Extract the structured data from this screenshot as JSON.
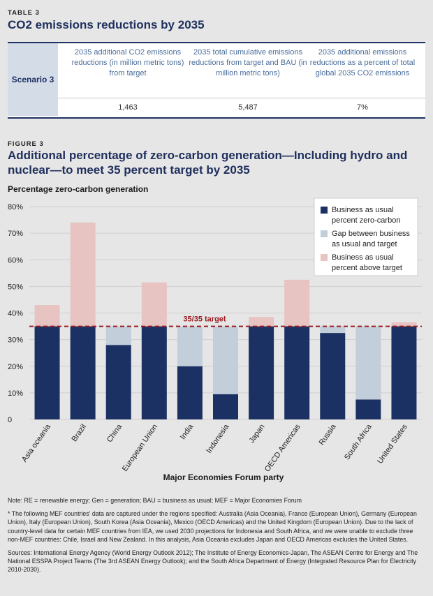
{
  "table": {
    "label": "TABLE 3",
    "title": "CO2 emissions reductions by 2035",
    "row_label": "Scenario 3",
    "headers": [
      "2035 additional CO2 emissions reductions (in million metric tons) from target",
      "2035 total cumulative emissions reductions from target and BAU (in million metric tons)",
      "2035 additional emissions reductions as a percent of total global 2035 CO2 emissions"
    ],
    "values": [
      "1,463",
      "5,487",
      "7%"
    ]
  },
  "figure": {
    "label": "FIGURE 3",
    "title": "Additional percentage of zero-carbon generation—Including hydro and nuclear—to meet 35 percent target by 2035"
  },
  "chart_data": {
    "type": "bar",
    "stacked": true,
    "ylabel": "Percentage zero-carbon generation",
    "xlabel": "Major Economies Forum party",
    "ylim": [
      0,
      80
    ],
    "yticks": [
      0,
      10,
      20,
      30,
      40,
      50,
      60,
      70,
      80
    ],
    "ytick_labels": [
      "0",
      "10%",
      "20%",
      "30%",
      "40%",
      "50%",
      "60%",
      "70%",
      "80%"
    ],
    "target": 35,
    "target_label": "35/35 target",
    "legend_position": "top-right",
    "categories": [
      "Asia oceania",
      "Brazil",
      "China",
      "European Union",
      "India",
      "Indonesia",
      "Japan",
      "OECD Americas",
      "Russia",
      "South Africa",
      "United States"
    ],
    "series": [
      {
        "name": "Business as usual percent zero-carbon",
        "color": "#1c3163",
        "values": [
          35,
          35,
          28,
          35,
          20,
          9.5,
          35,
          35,
          32.5,
          7.5,
          35
        ]
      },
      {
        "name": "Gap between business as usual and target",
        "color": "#c3cedb",
        "values": [
          0,
          0,
          7,
          0,
          15,
          25.5,
          0,
          0,
          2.5,
          27.5,
          0
        ]
      },
      {
        "name": "Business as usual percent above target",
        "color": "#e7c3c1",
        "values": [
          8,
          39,
          0,
          16.5,
          0,
          0,
          3.5,
          17.5,
          0,
          0,
          1.5
        ]
      }
    ],
    "legend_labels": [
      [
        "Business as usual",
        "percent zero-carbon"
      ],
      [
        "Gap between business",
        "as usual and target"
      ],
      [
        "Business as usual",
        "percent above target"
      ]
    ]
  },
  "notes": {
    "note": "Note: RE = renewable energy; Gen = generation; BAU = business as usual; MEF = Major Economies Forum",
    "footnote": "* The following MEF countries' data are captured under the regions specified: Australia (Asia Oceania), France (European Union), Germany (European Union), Italy (European Union), South Korea (Asia Oceania), Mexico (OECD Americas) and the United Kingdom (European Union). Due to the lack of country-level data for certain MEF countries from IEA, we used 2030 projections for Indonesia and South Africa, and we were unable to exclude three non-MEF countries: Chile, Israel and New Zealand. In this analysis, Asia Oceania excludes Japan and OECD Americas excludes the United States.",
    "sources": "Sources: International Energy Agency (World Energy Outlook 2012); The Institute of Energy Economics-Japan, The ASEAN Centre for Energy and The National ESSPA Project Teams (The 3rd ASEAN Energy Outlook); and the South Africa Department of Energy (Integrated Resource Plan for Electricity 2010-2030)."
  }
}
